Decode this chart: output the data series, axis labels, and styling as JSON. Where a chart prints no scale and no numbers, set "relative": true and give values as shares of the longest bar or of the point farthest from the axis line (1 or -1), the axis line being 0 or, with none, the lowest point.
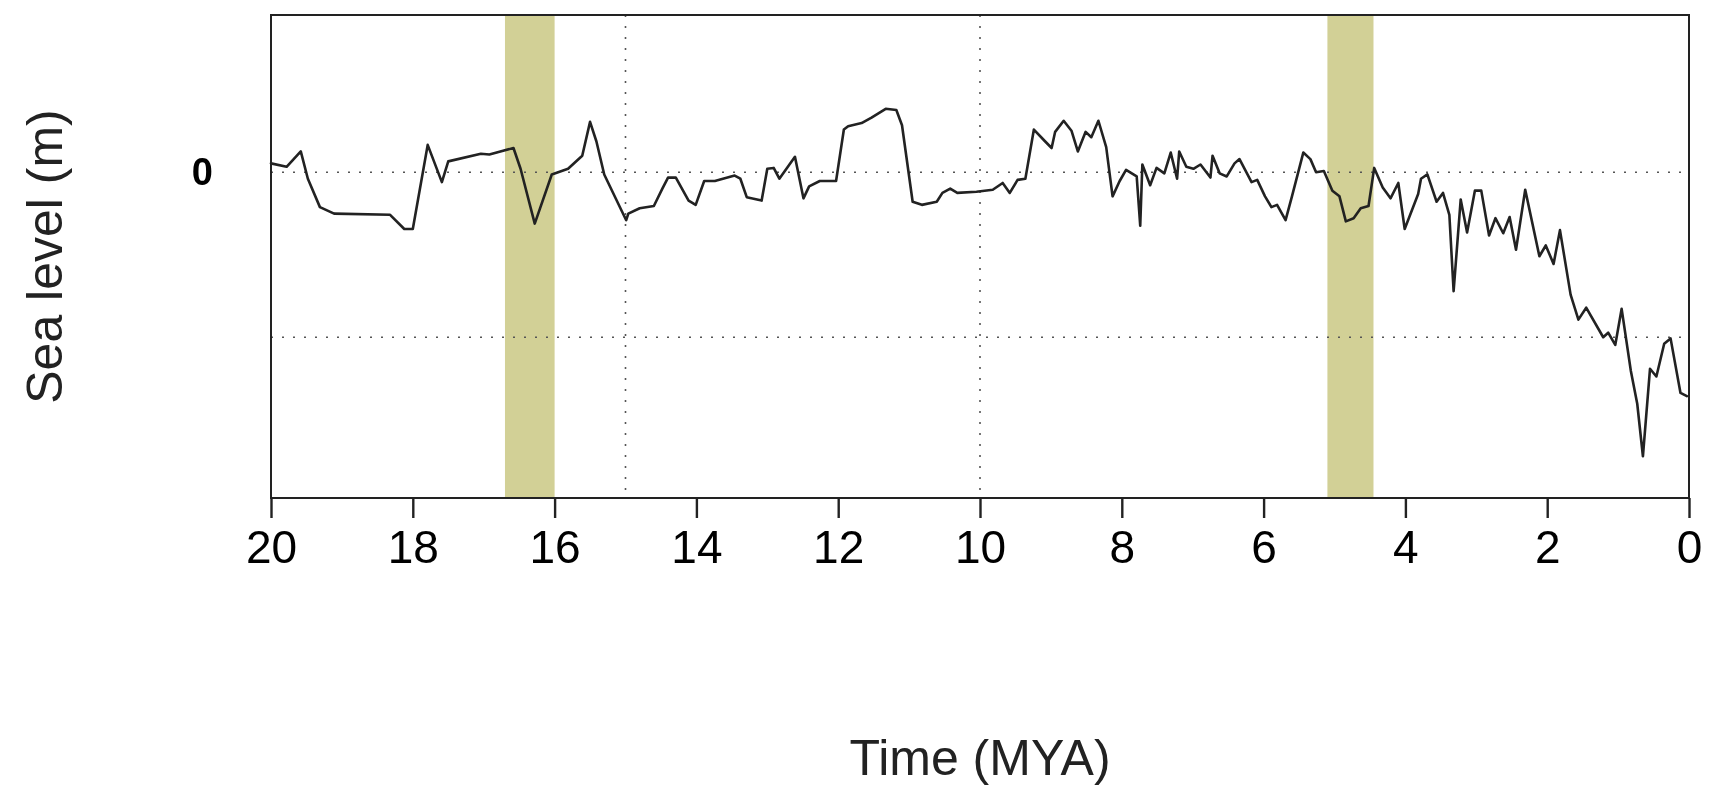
{
  "chart_data": {
    "type": "line",
    "relative": true,
    "xlabel": "Time (MYA)",
    "ylabel": "Sea level (m)",
    "xlim": [
      20,
      0
    ],
    "xticks": [
      20,
      18,
      16,
      14,
      12,
      10,
      8,
      6,
      4,
      2,
      0
    ],
    "x": [
      20.0,
      19.78,
      19.58,
      19.48,
      19.31,
      19.11,
      18.32,
      18.12,
      18.0,
      17.79,
      17.59,
      17.5,
      17.04,
      16.92,
      16.58,
      16.48,
      16.28,
      16.04,
      15.81,
      15.61,
      15.5,
      15.41,
      15.3,
      14.99,
      14.96,
      14.8,
      14.6,
      14.48,
      14.4,
      14.29,
      14.11,
      14.01,
      13.89,
      13.74,
      13.46,
      13.38,
      13.29,
      13.08,
      13.0,
      12.91,
      12.83,
      12.61,
      12.49,
      12.41,
      12.26,
      12.03,
      11.92,
      11.86,
      11.67,
      11.53,
      11.33,
      11.18,
      11.1,
      10.95,
      10.82,
      10.61,
      10.53,
      10.42,
      10.32,
      10.05,
      9.82,
      9.68,
      9.58,
      9.47,
      9.36,
      9.24,
      9.08,
      8.99,
      8.94,
      8.82,
      8.71,
      8.62,
      8.51,
      8.43,
      8.33,
      8.22,
      8.13,
      8.03,
      7.94,
      7.79,
      7.74,
      7.71,
      7.6,
      7.51,
      7.4,
      7.31,
      7.22,
      7.19,
      7.09,
      6.99,
      6.89,
      6.75,
      6.72,
      6.62,
      6.52,
      6.41,
      6.34,
      6.17,
      6.09,
      5.98,
      5.89,
      5.81,
      5.69,
      5.6,
      5.44,
      5.34,
      5.26,
      5.15,
      5.03,
      4.93,
      4.84,
      4.73,
      4.63,
      4.52,
      4.44,
      4.32,
      4.21,
      4.1,
      4.01,
      3.82,
      3.78,
      3.69,
      3.56,
      3.47,
      3.38,
      3.32,
      3.22,
      3.13,
      3.02,
      2.93,
      2.82,
      2.73,
      2.62,
      2.53,
      2.44,
      2.31,
      2.11,
      2.02,
      1.91,
      1.82,
      1.67,
      1.56,
      1.45,
      1.21,
      1.14,
      1.04,
      0.95,
      0.82,
      0.73,
      0.65,
      0.55,
      0.46,
      0.35,
      0.26,
      0.12,
      0.03
    ],
    "series": [
      {
        "color": "#222222",
        "values": [
          0.031,
          0.019,
          0.073,
          -0.023,
          -0.123,
          -0.146,
          -0.15,
          -0.2,
          -0.2,
          0.096,
          -0.035,
          0.038,
          0.065,
          0.062,
          0.085,
          0.012,
          -0.181,
          -0.008,
          0.012,
          0.058,
          0.177,
          0.108,
          -0.008,
          -0.169,
          -0.146,
          -0.127,
          -0.119,
          -0.058,
          -0.019,
          -0.019,
          -0.1,
          -0.115,
          -0.031,
          -0.031,
          -0.012,
          -0.023,
          -0.088,
          -0.1,
          0.012,
          0.015,
          -0.023,
          0.054,
          -0.092,
          -0.05,
          -0.031,
          -0.031,
          0.15,
          0.162,
          0.173,
          0.192,
          0.223,
          0.219,
          0.165,
          -0.104,
          -0.115,
          -0.104,
          -0.073,
          -0.058,
          -0.073,
          -0.069,
          -0.062,
          -0.038,
          -0.073,
          -0.027,
          -0.023,
          0.15,
          0.108,
          0.085,
          0.142,
          0.181,
          0.146,
          0.073,
          0.142,
          0.123,
          0.181,
          0.088,
          -0.085,
          -0.031,
          0.008,
          -0.015,
          -0.188,
          0.027,
          -0.046,
          0.015,
          -0.004,
          0.069,
          -0.023,
          0.073,
          0.019,
          0.012,
          0.027,
          -0.019,
          0.058,
          -0.004,
          -0.015,
          0.031,
          0.046,
          -0.035,
          -0.027,
          -0.085,
          -0.123,
          -0.115,
          -0.169,
          -0.085,
          0.069,
          0.046,
          0,
          0.004,
          -0.065,
          -0.085,
          -0.173,
          -0.162,
          -0.127,
          -0.119,
          0.015,
          -0.054,
          -0.092,
          -0.038,
          -0.2,
          -0.077,
          -0.023,
          -0.008,
          -0.104,
          -0.073,
          -0.15,
          -0.419,
          -0.096,
          -0.212,
          -0.065,
          -0.065,
          -0.223,
          -0.162,
          -0.215,
          -0.158,
          -0.273,
          -0.062,
          -0.296,
          -0.258,
          -0.323,
          -0.204,
          -0.431,
          -0.519,
          -0.477,
          -0.581,
          -0.565,
          -0.608,
          -0.481,
          -0.7,
          -0.815,
          -1,
          -0.692,
          -0.719,
          -0.604,
          -0.585,
          -0.777,
          -0.788
        ]
      }
    ],
    "ref_lines": [
      {
        "axis": "y",
        "value": 0,
        "label": "0",
        "line_style": "dotted",
        "color": "#555555"
      },
      {
        "axis": "y",
        "value": -0.581,
        "line_style": "dotted",
        "color": "#555555"
      },
      {
        "axis": "x",
        "value": 15,
        "line_style": "dotted",
        "color": "#555555"
      },
      {
        "axis": "x",
        "value": 10,
        "line_style": "dotted",
        "color": "#555555"
      }
    ],
    "bands": [
      {
        "axis": "x",
        "from": 16.7,
        "to": 16.0,
        "color": "#d2d096"
      },
      {
        "axis": "x",
        "from": 5.1,
        "to": 4.45,
        "color": "#d2d096"
      }
    ],
    "line_style": "solid",
    "marker": "none"
  }
}
